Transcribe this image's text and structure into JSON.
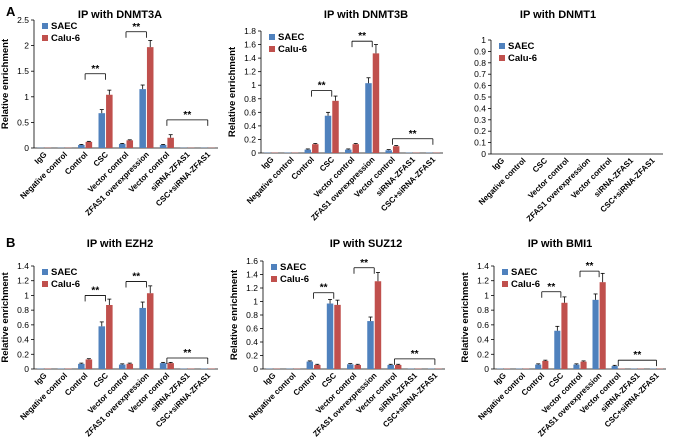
{
  "figure": {
    "panel_labels": [
      "A",
      "B"
    ]
  },
  "colors": {
    "saec": "#4f81bd",
    "calu6": "#c0504d"
  },
  "chart_data": [
    {
      "type": "bar",
      "panel": "A",
      "title": "IP with DNMT3A",
      "ylabel": "Relative enrichment",
      "xlabel": "",
      "ylim": [
        0,
        2.5
      ],
      "yticks": [
        "0",
        "0.5",
        "1",
        "1.5",
        "2",
        "2.5"
      ],
      "categories": [
        "IgG",
        "Negative control",
        "Control",
        "CSC",
        "Vector control",
        "ZFAS1 overexpression",
        "Vector control",
        "siRNA-ZFAS1",
        "CSC+siRNA-ZFAS1"
      ],
      "series": [
        {
          "name": "SAEC",
          "values": [
            0.005,
            0.005,
            0.06,
            0.68,
            0.08,
            1.15,
            0.06,
            0.005,
            0.005
          ],
          "errors": [
            0,
            0,
            0.01,
            0.07,
            0.01,
            0.08,
            0.01,
            0,
            0
          ]
        },
        {
          "name": "Calu-6",
          "values": [
            0.005,
            0.005,
            0.12,
            1.04,
            0.15,
            1.97,
            0.2,
            0.005,
            0.005
          ],
          "errors": [
            0,
            0,
            0.01,
            0.09,
            0.01,
            0.13,
            0.06,
            0,
            0
          ]
        }
      ],
      "legend": [
        "SAEC",
        "Calu-6"
      ],
      "significance": [
        {
          "label": "**",
          "from": 2,
          "to": 3,
          "y": 1.45
        },
        {
          "label": "**",
          "from": 4,
          "to": 5,
          "y": 2.27
        },
        {
          "label": "**",
          "from": 6,
          "to": 8,
          "y": 0.55
        }
      ]
    },
    {
      "type": "bar",
      "panel": "A",
      "title": "IP with DNMT3B",
      "ylabel": "Relative enrichment",
      "xlabel": "",
      "ylim": [
        0,
        1.8
      ],
      "yticks": [
        "0",
        "0.2",
        "0.4",
        "0.6",
        "0.8",
        "1",
        "1.2",
        "1.4",
        "1.6",
        "1.8"
      ],
      "categories": [
        "IgG",
        "Negative control",
        "Control",
        "CSC",
        "Vector control",
        "ZFAS1 overexpression",
        "Vector control",
        "siRNA-ZFAS1",
        "CSC+siRNA-ZFAS1"
      ],
      "series": [
        {
          "name": "SAEC",
          "values": [
            0.005,
            0.005,
            0.05,
            0.55,
            0.05,
            1.03,
            0.04,
            0.005,
            0.005
          ],
          "errors": [
            0,
            0,
            0.01,
            0.05,
            0.01,
            0.08,
            0.01,
            0,
            0
          ]
        },
        {
          "name": "Calu-6",
          "values": [
            0.005,
            0.005,
            0.13,
            0.77,
            0.13,
            1.47,
            0.1,
            0.005,
            0.005
          ],
          "errors": [
            0,
            0,
            0.01,
            0.07,
            0.01,
            0.13,
            0.01,
            0,
            0
          ]
        }
      ],
      "legend": [
        "SAEC",
        "Calu-6"
      ],
      "significance": [
        {
          "label": "**",
          "from": 2,
          "to": 3,
          "y": 0.92
        },
        {
          "label": "**",
          "from": 4,
          "to": 5,
          "y": 1.65
        },
        {
          "label": "**",
          "from": 6,
          "to": 8,
          "y": 0.21
        }
      ]
    },
    {
      "type": "bar",
      "panel": "A",
      "title": "IP with DNMT1",
      "ylabel": "",
      "xlabel": "",
      "ylim": [
        0,
        1
      ],
      "yticks": [
        "0",
        "0.1",
        "0.2",
        "0.3",
        "0.4",
        "0.5",
        "0.6",
        "0.7",
        "0.8",
        "0.9",
        "1"
      ],
      "categories": [
        "IgG",
        "Negative control",
        "CSC",
        "Vector control",
        "ZFAS1 overexpression",
        "Vector control",
        "siRNA-ZFAS1",
        "CSC+siRNA-ZFAS1"
      ],
      "series": [
        {
          "name": "SAEC",
          "values": [
            0,
            0,
            0,
            0,
            0,
            0,
            0,
            0
          ],
          "errors": [
            0,
            0,
            0,
            0,
            0,
            0,
            0,
            0
          ]
        },
        {
          "name": "Calu-6",
          "values": [
            0,
            0,
            0,
            0,
            0,
            0,
            0,
            0
          ],
          "errors": [
            0,
            0,
            0,
            0,
            0,
            0,
            0,
            0
          ]
        }
      ],
      "legend": [
        "SAEC",
        "Calu-6"
      ],
      "significance": []
    },
    {
      "type": "bar",
      "panel": "B",
      "title": "IP with EZH2",
      "ylabel": "Relative enrichment",
      "xlabel": "",
      "ylim": [
        0,
        1.4
      ],
      "yticks": [
        "0",
        "0.2",
        "0.4",
        "0.6",
        "0.8",
        "1",
        "1.2",
        "1.4"
      ],
      "categories": [
        "IgG",
        "Negative control",
        "Control",
        "CSC",
        "Vector control",
        "ZFAS1 overexpression",
        "Vector control",
        "siRNA-ZFAS1",
        "CSC+siRNA-ZFAS1"
      ],
      "series": [
        {
          "name": "SAEC",
          "values": [
            0.005,
            0.005,
            0.07,
            0.58,
            0.06,
            0.83,
            0.08,
            0.005,
            0.005
          ],
          "errors": [
            0,
            0,
            0.01,
            0.06,
            0.01,
            0.08,
            0.01,
            0,
            0
          ]
        },
        {
          "name": "Calu-6",
          "values": [
            0.005,
            0.005,
            0.13,
            0.87,
            0.07,
            1.03,
            0.08,
            0.005,
            0.005
          ],
          "errors": [
            0,
            0,
            0.01,
            0.08,
            0.01,
            0.1,
            0.01,
            0,
            0
          ]
        }
      ],
      "legend": [
        "SAEC",
        "Calu-6"
      ],
      "significance": [
        {
          "label": "**",
          "from": 2,
          "to": 3,
          "y": 1.0
        },
        {
          "label": "**",
          "from": 4,
          "to": 5,
          "y": 1.19
        },
        {
          "label": "**",
          "from": 6,
          "to": 8,
          "y": 0.15
        }
      ]
    },
    {
      "type": "bar",
      "panel": "B",
      "title": "IP with SUZ12",
      "ylabel": "Relative enrichment",
      "xlabel": "",
      "ylim": [
        0,
        1.6
      ],
      "yticks": [
        "0",
        "0.2",
        "0.4",
        "0.6",
        "0.8",
        "1",
        "1.2",
        "1.4",
        "1.6"
      ],
      "categories": [
        "IgG",
        "Negative control",
        "Control",
        "CSC",
        "Vector control",
        "ZFAS1 overexpression",
        "Vector control",
        "siRNA-ZFAS1",
        "CSC+siRNA-ZFAS1"
      ],
      "series": [
        {
          "name": "SAEC",
          "values": [
            0.005,
            0.005,
            0.11,
            0.97,
            0.07,
            0.71,
            0.06,
            0.005,
            0.005
          ],
          "errors": [
            0,
            0,
            0.01,
            0.06,
            0.01,
            0.06,
            0.01,
            0,
            0
          ]
        },
        {
          "name": "Calu-6",
          "values": [
            0.005,
            0.005,
            0.06,
            0.95,
            0.06,
            1.3,
            0.06,
            0.005,
            0.005
          ],
          "errors": [
            0,
            0,
            0.01,
            0.07,
            0.01,
            0.13,
            0.01,
            0,
            0
          ]
        }
      ],
      "legend": [
        "SAEC",
        "Calu-6"
      ],
      "significance": [
        {
          "label": "**",
          "from": 2,
          "to": 3,
          "y": 1.13
        },
        {
          "label": "**",
          "from": 4,
          "to": 5,
          "y": 1.5
        },
        {
          "label": "**",
          "from": 6,
          "to": 8,
          "y": 0.15
        }
      ]
    },
    {
      "type": "bar",
      "panel": "B",
      "title": "IP with BMI1",
      "ylabel": "Relative enrichment",
      "xlabel": "",
      "ylim": [
        0,
        1.4
      ],
      "yticks": [
        "0",
        "0.2",
        "0.4",
        "0.6",
        "0.8",
        "1",
        "1.2",
        "1.4"
      ],
      "categories": [
        "IgG",
        "Negative control",
        "Control",
        "CSC",
        "Vector control",
        "ZFAS1 overexpression",
        "Vector control",
        "siRNA-ZFAS1",
        "CSC+siRNA-ZFAS1"
      ],
      "series": [
        {
          "name": "SAEC",
          "values": [
            0.005,
            0.005,
            0.06,
            0.52,
            0.06,
            0.94,
            0.04,
            0.005,
            0.005
          ],
          "errors": [
            0,
            0,
            0.01,
            0.06,
            0.01,
            0.08,
            0.01,
            0,
            0
          ]
        },
        {
          "name": "Calu-6",
          "values": [
            0.005,
            0.005,
            0.11,
            0.9,
            0.1,
            1.18,
            0.005,
            0.005,
            0.005
          ],
          "errors": [
            0,
            0,
            0.01,
            0.08,
            0.01,
            0.12,
            0,
            0,
            0
          ]
        }
      ],
      "legend": [
        "SAEC",
        "Calu-6"
      ],
      "significance": [
        {
          "label": "**",
          "from": 2,
          "to": 3,
          "y": 1.05
        },
        {
          "label": "**",
          "from": 4,
          "to": 5,
          "y": 1.33
        },
        {
          "label": "**",
          "from": 6,
          "to": 8,
          "y": 0.12
        }
      ]
    }
  ]
}
